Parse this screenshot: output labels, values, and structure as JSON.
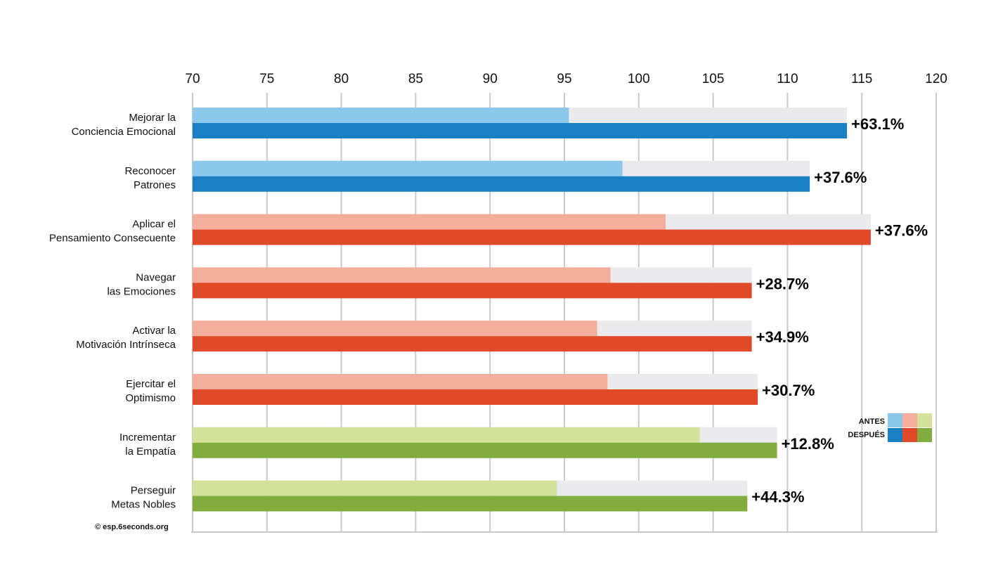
{
  "chart_data": {
    "type": "bar",
    "orientation": "horizontal",
    "x_ticks": [
      70,
      75,
      80,
      85,
      90,
      95,
      100,
      105,
      110,
      115,
      120
    ],
    "xlim": [
      70,
      120
    ],
    "grid": true,
    "legend_position": "bottom-right",
    "legend": {
      "before_label": "ANTES",
      "after_label": "DESPUÉS"
    },
    "categories": [
      {
        "line1": "Mejorar la",
        "line2": "Conciencia Emocional",
        "before": 95.3,
        "after": 114,
        "change": "+63.1%",
        "group": "blue"
      },
      {
        "line1": "Reconocer",
        "line2": "Patrones",
        "before": 98.9,
        "after": 111.5,
        "change": "+37.6%",
        "group": "blue"
      },
      {
        "line1": "Aplicar el",
        "line2": "Pensamiento Consecuente",
        "before": 101.8,
        "after": 115.6,
        "change": "+37.6%",
        "group": "red"
      },
      {
        "line1": "Navegar",
        "line2": "las Emociones",
        "before": 98.1,
        "after": 107.6,
        "change": "+28.7%",
        "group": "red"
      },
      {
        "line1": "Activar la",
        "line2": "Motivación Intrínseca",
        "before": 97.2,
        "after": 107.6,
        "change": "+34.9%",
        "group": "red"
      },
      {
        "line1": "Ejercitar el",
        "line2": "Optimismo",
        "before": 97.9,
        "after": 108,
        "change": "+30.7%",
        "group": "red"
      },
      {
        "line1": "Incrementar",
        "line2": "la Empatía",
        "before": 104.1,
        "after": 109.3,
        "change": "+12.8%",
        "group": "green"
      },
      {
        "line1": "Perseguir",
        "line2": "Metas Nobles",
        "before": 94.5,
        "after": 107.3,
        "change": "+44.3%",
        "group": "green"
      }
    ],
    "colors": {
      "blue": {
        "before": "#8cc8ec",
        "after": "#1a80c3"
      },
      "red": {
        "before": "#f3ae9c",
        "after": "#e04a28"
      },
      "green": {
        "before": "#d5e29a",
        "after": "#82ad3e"
      },
      "track": "#ebebed",
      "grid": "#c9c9c9"
    }
  },
  "footer": {
    "credit": "© esp.6seconds.org"
  }
}
